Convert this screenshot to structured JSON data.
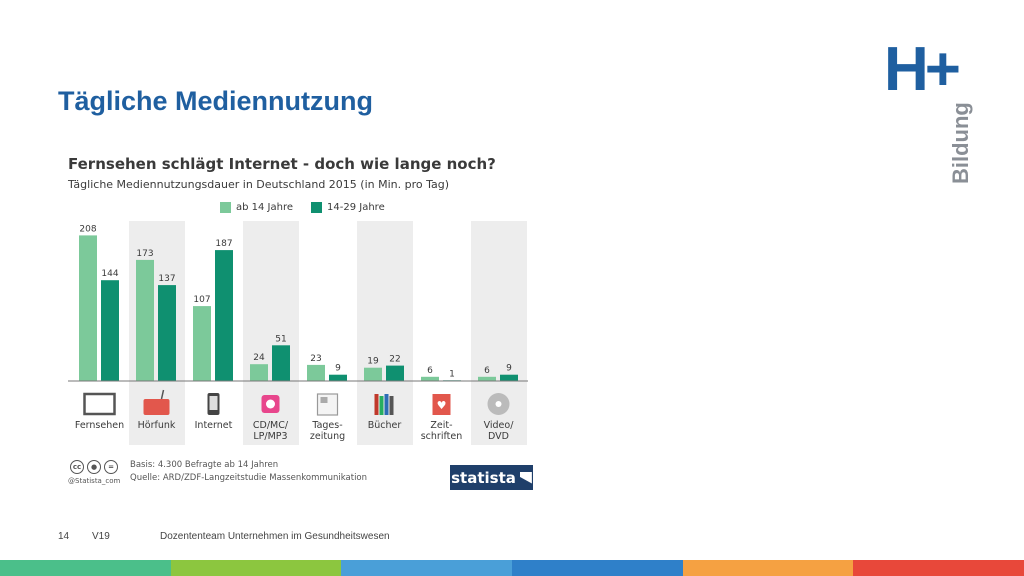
{
  "slide": {
    "title": "Tägliche Mediennutzung",
    "page_number": "14",
    "version": "V19",
    "footer_text": "Dozententeam Unternehmen im Gesundheitswesen",
    "color_bar": [
      "#4bbf8a",
      "#8cc63f",
      "#4a9fd8",
      "#2f80c9",
      "#f5a142",
      "#e8483a"
    ]
  },
  "logo": {
    "main": "H+",
    "sub": "Bildung",
    "color": "#1f5fa0"
  },
  "infographic": {
    "title": "Fernsehen schlägt Internet - doch wie lange noch?",
    "subtitle": "Tägliche Mediennutzungsdauer in Deutschland 2015 (in Min. pro Tag)",
    "basis": "Basis: 4.300 Befragte ab 14 Jahren",
    "source": "Quelle: ARD/ZDF-Langzeitstudie Massenkommunikation",
    "handle": "@Statista_com",
    "brand": "statista",
    "cc_icons": [
      "cc",
      "by",
      "nd"
    ]
  },
  "chart_data": {
    "type": "bar",
    "title": "Fernsehen schlägt Internet - doch wie lange noch?",
    "subtitle": "Tägliche Mediennutzungsdauer in Deutschland 2015 (in Min. pro Tag)",
    "categories": [
      "Fernsehen",
      "Hörfunk",
      "Internet",
      "CD/MC/\nLP/MP3",
      "Tages-\nzeitung",
      "Bücher",
      "Zeit-\nschriften",
      "Video/\nDVD"
    ],
    "category_icons": [
      "tv-icon",
      "radio-icon",
      "smartphone-icon",
      "music-player-icon",
      "newspaper-icon",
      "books-icon",
      "magazine-icon",
      "disc-icon"
    ],
    "series": [
      {
        "name": "ab 14 Jahre",
        "color": "#7cc99a",
        "values": [
          208,
          173,
          107,
          24,
          23,
          19,
          6,
          6
        ]
      },
      {
        "name": "14-29 Jahre",
        "color": "#0f9070",
        "values": [
          144,
          137,
          187,
          51,
          9,
          22,
          1,
          9
        ]
      }
    ],
    "ylim": [
      0,
      220
    ],
    "shaded_categories": [
      1,
      3,
      5,
      7
    ],
    "legend_position": "top"
  }
}
